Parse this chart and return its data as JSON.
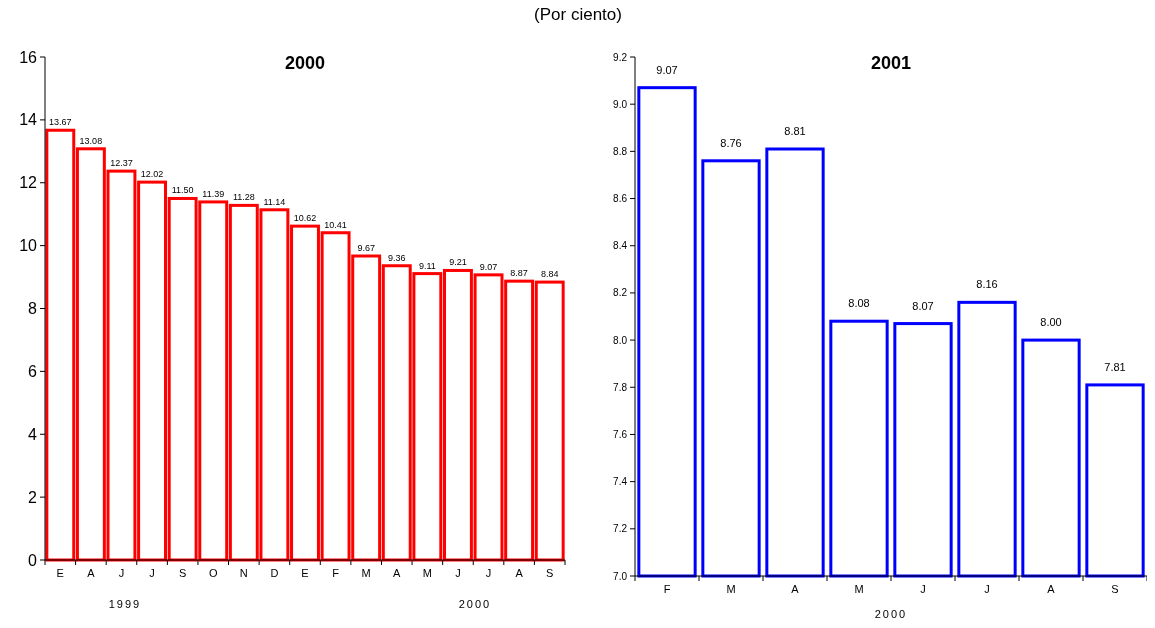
{
  "chart_data": [
    {
      "type": "bar",
      "subtitle": "(Por ciento)",
      "title": "2000",
      "categories": [
        "E",
        "A",
        "J",
        "J",
        "S",
        "O",
        "N",
        "D",
        "E",
        "F",
        "M",
        "A",
        "M",
        "J",
        "J",
        "A",
        "S"
      ],
      "values": [
        13.67,
        13.08,
        12.37,
        12.02,
        11.5,
        11.39,
        11.28,
        11.14,
        10.62,
        10.41,
        9.67,
        9.36,
        9.11,
        9.21,
        9.07,
        8.87,
        8.84
      ],
      "value_labels": [
        "13.67",
        "13.08",
        "12.37",
        "12.02",
        "11.50",
        "11.39",
        "11.28",
        "11.14",
        "10.62",
        "10.41",
        "9.67",
        "9.36",
        "9.11",
        "9.21",
        "9.07",
        "8.87",
        "8.84"
      ],
      "color": "#ff0000",
      "ylim": [
        0,
        16
      ],
      "yticks": [
        0,
        2,
        4,
        6,
        8,
        10,
        12,
        14,
        16
      ],
      "grid": false,
      "annotations": [
        "1999",
        "2000"
      ]
    },
    {
      "type": "bar",
      "title": "2001",
      "xlabel": "2000",
      "categories": [
        "F",
        "M",
        "A",
        "M",
        "J",
        "J",
        "A",
        "S"
      ],
      "values": [
        9.07,
        8.76,
        8.81,
        8.08,
        8.07,
        8.16,
        8.0,
        7.81
      ],
      "value_labels": [
        "9.07",
        "8.76",
        "8.81",
        "8.08",
        "8.07",
        "8.16",
        "8.00",
        "7.81"
      ],
      "color": "#0000ff",
      "ylim": [
        7.0,
        9.2
      ],
      "yticks": [
        {
          "value": 7,
          "label": "7.0"
        },
        7.2,
        7.4,
        7.6,
        7.8,
        {
          "value": 8,
          "label": "8.0"
        },
        8.2,
        8.4,
        8.6,
        8.8,
        {
          "value": 9,
          "label": "9.0"
        },
        9.2
      ],
      "grid": false
    }
  ]
}
